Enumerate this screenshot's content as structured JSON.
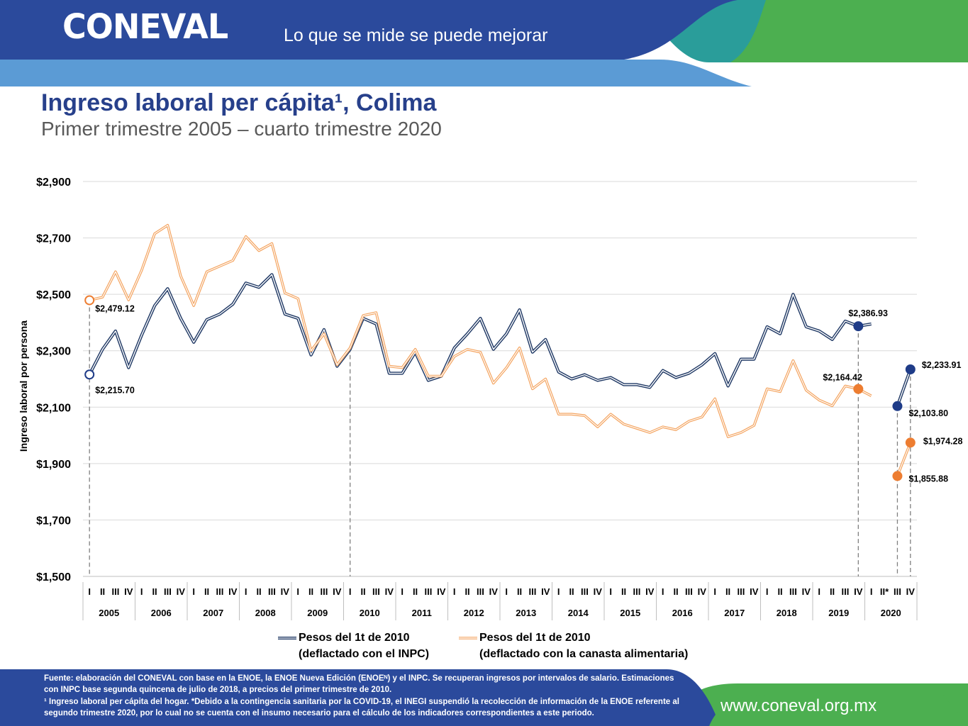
{
  "header": {
    "logo_text": "CONEVAL",
    "tagline": "Lo que se mide se puede mejorar",
    "colors": {
      "blue": "#2b4a9c",
      "light_blue": "#5b9bd5",
      "teal": "#2a9d9a",
      "green": "#4caf50"
    }
  },
  "title": "Ingreso laboral per cápita¹, Colima",
  "subtitle": "Primer trimestre 2005 – cuarto trimestre 2020",
  "footer": {
    "source": "Fuente: elaboración del CONEVAL con base en la ENOE, la ENOE Nueva Edición (ENOEᴺ) y el INPC. Se recuperan ingresos por intervalos de salario. Estimaciones con INPC base segunda quincena de julio de 2018, a precios del primer trimestre de 2010.",
    "note": "¹ Ingreso laboral per cápita del hogar. *Debido a la contingencia sanitaria por la COVID-19, el INEGI suspendió la recolección de información de la ENOE referente al segundo trimestre 2020, por lo cual no se cuenta con el insumo necesario para el cálculo de los indicadores correspondientes a este periodo.",
    "website": "www.coneval.org.mx"
  },
  "chart_data": {
    "type": "line",
    "ylabel": "Ingreso laboral por persona",
    "ylim": [
      1500,
      2900
    ],
    "yticks": [
      1500,
      1700,
      1900,
      2100,
      2300,
      2500,
      2700,
      2900
    ],
    "ytick_labels": [
      "$1,500",
      "$1,700",
      "$1,900",
      "$2,100",
      "$2,300",
      "$2,500",
      "$2,700",
      "$2,900"
    ],
    "years": [
      "2005",
      "2006",
      "2007",
      "2008",
      "2009",
      "2010",
      "2011",
      "2012",
      "2013",
      "2014",
      "2015",
      "2016",
      "2017",
      "2018",
      "2019",
      "2020"
    ],
    "quarters": [
      "I",
      "II",
      "III",
      "IV"
    ],
    "quarters_2020": [
      "I",
      "II*",
      "III",
      "IV"
    ],
    "grid": true,
    "legend_position": "bottom",
    "series": [
      {
        "name": "Pesos del 1t de 2010 (deflactado con el INPC)",
        "legend_lines": [
          "Pesos del 1t de 2010",
          "(deflactado con el INPC)"
        ],
        "color": "#1f3864",
        "values": [
          2215.7,
          2305,
          2370,
          2240,
          2355,
          2460,
          2520,
          2415,
          2330,
          2410,
          2430,
          2465,
          2540,
          2525,
          2570,
          2430,
          2415,
          2285,
          2375,
          2245,
          2305,
          2415,
          2395,
          2220,
          2220,
          2295,
          2195,
          2210,
          2310,
          2360,
          2415,
          2305,
          2360,
          2445,
          2295,
          2340,
          2225,
          2200,
          2215,
          2195,
          2205,
          2180,
          2180,
          2170,
          2230,
          2205,
          2220,
          2250,
          2290,
          2175,
          2270,
          2270,
          2385,
          2360,
          2500,
          2385,
          2370,
          2340,
          2405,
          2386.93,
          2395,
          null,
          2103.8,
          2233.91
        ]
      },
      {
        "name": "Pesos del 1t de 2010 (deflactado con la canasta alimentaria)",
        "legend_lines": [
          "Pesos del 1t de 2010",
          "(deflactado con la canasta alimentaria)"
        ],
        "color": "#f4b183",
        "marker_color": "#ed7d31",
        "values": [
          2479.12,
          2490,
          2580,
          2480,
          2585,
          2715,
          2745,
          2565,
          2460,
          2580,
          2600,
          2620,
          2705,
          2655,
          2680,
          2505,
          2485,
          2300,
          2360,
          2250,
          2310,
          2425,
          2435,
          2245,
          2240,
          2305,
          2210,
          2210,
          2280,
          2305,
          2295,
          2185,
          2240,
          2310,
          2165,
          2200,
          2075,
          2075,
          2070,
          2030,
          2075,
          2040,
          2025,
          2010,
          2030,
          2020,
          2050,
          2065,
          2130,
          1995,
          2010,
          2035,
          2165,
          2155,
          2265,
          2160,
          2125,
          2105,
          2175,
          2164.42,
          2140,
          null,
          1855.88,
          1974.28
        ]
      }
    ],
    "annotations": [
      {
        "series": 1,
        "index": 0,
        "label": "$2,479.12",
        "hollow": true
      },
      {
        "series": 0,
        "index": 0,
        "label": "$2,215.70",
        "hollow": true
      },
      {
        "series": 0,
        "index": 59,
        "label": "$2,386.93"
      },
      {
        "series": 1,
        "index": 59,
        "label": "$2,164.42"
      },
      {
        "series": 0,
        "index": 62,
        "label": "$2,103.80"
      },
      {
        "series": 0,
        "index": 63,
        "label": "$2,233.91"
      },
      {
        "series": 1,
        "index": 62,
        "label": "$1,855.88"
      },
      {
        "series": 1,
        "index": 63,
        "label": "$1,974.28"
      }
    ],
    "dashed_reference_indices": [
      0,
      20,
      59,
      62,
      63
    ]
  }
}
